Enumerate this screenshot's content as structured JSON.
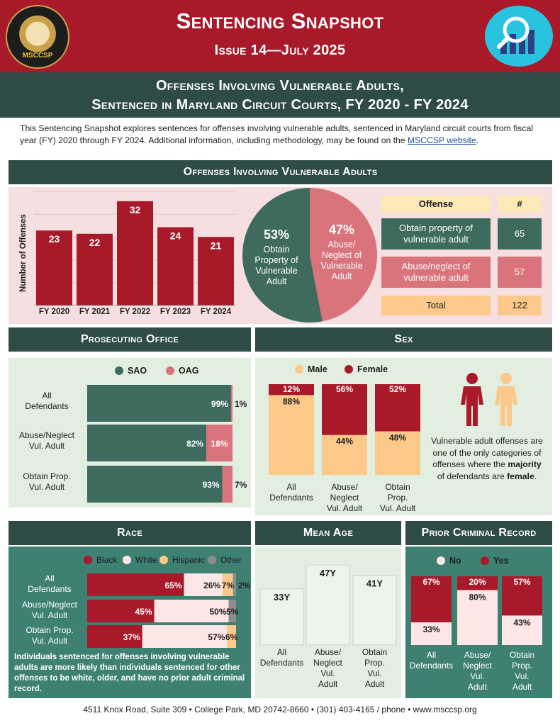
{
  "header": {
    "title": "Sentencing Snapshot",
    "issue": "Issue 14—July 2025",
    "logo_text": "MSCCSP",
    "badge_icon": "magnifier-chart-icon"
  },
  "report_title": {
    "line1": "Offenses Involving Vulnerable Adults,",
    "line2": "Sentenced in Maryland Circuit Courts, FY 2020 - FY 2024"
  },
  "intro": {
    "text": "This Sentencing Snapshot explores sentences for offenses involving vulnerable adults, sentenced in Maryland circuit courts from fiscal year (FY) 2020 through FY 2024. Additional information, including methodology, may be found on the ",
    "link": "MSCCSP website",
    "tail": "."
  },
  "colors": {
    "red": "#a8192a",
    "green": "#3e6b5e",
    "pink": "#d9737c",
    "peach": "#fcc98a",
    "lightpink": "#fde6e6",
    "gray": "#8d8d8d",
    "mint": "#e2efe0"
  },
  "sections": {
    "offenses": "Offenses Involving Vulnerable Adults",
    "prosecuting": "Prosecuting Office",
    "sex": "Sex",
    "race": "Race",
    "age": "Mean Age",
    "prior": "Prior Criminal Record"
  },
  "offense_table": {
    "headers": [
      "Offense",
      "#"
    ],
    "rows": [
      {
        "label": "Obtain property of vulnerable adult",
        "count": "65"
      },
      {
        "label": "Abuse/neglect of vulnerable adult",
        "count": "57"
      },
      {
        "label": "Total",
        "count": "122"
      }
    ]
  },
  "sex_note": {
    "pre": "Vulnerable adult offenses are one of the only categories of offenses where the ",
    "b1": "majority",
    "mid": " of defendants are ",
    "b2": "female",
    "post": "."
  },
  "race_note": "Individuals sentenced for offenses involving vulnerable adults are more likely than individuals sentenced for other offenses to be white, older, and have no prior adult criminal record.",
  "footer": "4511 Knox Road, Suite 309  •  College Park, MD 20742-8660  •  (301) 403-4165 / phone  •  www.msccsp.org",
  "chart_data": [
    {
      "id": "offenses_by_year",
      "type": "bar",
      "categories": [
        "FY 2020",
        "FY 2021",
        "FY 2022",
        "FY 2023",
        "FY 2024"
      ],
      "values": [
        23,
        22,
        32,
        24,
        21
      ],
      "ylabel": "Number of Offenses",
      "ylim": [
        0,
        35
      ],
      "grid": true
    },
    {
      "id": "offense_share",
      "type": "pie",
      "slices": [
        {
          "name": "Obtain Property of Vulnerable Adult",
          "value": 53,
          "label": "53%",
          "color": "#3e6b5e"
        },
        {
          "name": "Abuse/ Neglect of Vulnerable Adult",
          "value": 47,
          "label": "47%",
          "color": "#d9737c"
        }
      ]
    },
    {
      "id": "prosecuting_office",
      "type": "bar",
      "orientation": "horizontal",
      "stacked": true,
      "categories": [
        "All Defendants",
        "Abuse/Neglect Vul. Adult",
        "Obtain Prop. Vul. Adult"
      ],
      "series": [
        {
          "name": "SAO",
          "values": [
            99,
            82,
            93
          ],
          "labels": [
            "99%",
            "82%",
            "93%"
          ],
          "color": "#3e6b5e"
        },
        {
          "name": "OAG",
          "values": [
            1,
            18,
            7
          ],
          "labels": [
            "1%",
            "18%",
            "7%"
          ],
          "color": "#d9737c"
        }
      ]
    },
    {
      "id": "sex",
      "type": "bar",
      "stacked": true,
      "categories": [
        "All Defendants",
        "Abuse/ Neglect Vul. Adult",
        "Obtain Prop. Vul. Adult"
      ],
      "series": [
        {
          "name": "Male",
          "values": [
            88,
            44,
            48
          ],
          "labels": [
            "88%",
            "44%",
            "48%"
          ],
          "color": "#fcc98a"
        },
        {
          "name": "Female",
          "values": [
            12,
            56,
            52
          ],
          "labels": [
            "12%",
            "56%",
            "52%"
          ],
          "color": "#a8192a"
        }
      ]
    },
    {
      "id": "race",
      "type": "bar",
      "orientation": "horizontal",
      "stacked": true,
      "categories": [
        "All Defendants",
        "Abuse/Neglect Vul. Adult",
        "Obtain Prop. Vul. Adult"
      ],
      "series": [
        {
          "name": "Black",
          "values": [
            65,
            45,
            37
          ],
          "labels": [
            "65%",
            "45%",
            "37%"
          ],
          "color": "#a8192a"
        },
        {
          "name": "White",
          "values": [
            26,
            50,
            57
          ],
          "labels": [
            "26%",
            "50%",
            "57%"
          ],
          "color": "#fde6e6"
        },
        {
          "name": "Hispanic",
          "values": [
            7,
            0,
            6
          ],
          "labels": [
            "7%",
            "",
            "6%"
          ],
          "color": "#fcc98a"
        },
        {
          "name": "Other",
          "values": [
            2,
            5,
            0
          ],
          "labels": [
            "2%",
            "5%",
            ""
          ],
          "color": "#8d8d8d"
        }
      ]
    },
    {
      "id": "mean_age",
      "type": "bar",
      "categories": [
        "All Defendants",
        "Abuse/ Neglect Vul. Adult",
        "Obtain Prop. Vul. Adult"
      ],
      "values": [
        33,
        47,
        41
      ],
      "labels": [
        "33Y",
        "47Y",
        "41Y"
      ],
      "ylim": [
        0,
        50
      ]
    },
    {
      "id": "prior_record",
      "type": "bar",
      "stacked": true,
      "categories": [
        "All Defendants",
        "Abuse/ Neglect Vul. Adult",
        "Obtain Prop. Vul. Adult"
      ],
      "series": [
        {
          "name": "No",
          "values": [
            33,
            80,
            43
          ],
          "labels": [
            "33%",
            "80%",
            "43%"
          ],
          "color": "#fde6e6"
        },
        {
          "name": "Yes",
          "values": [
            67,
            20,
            57
          ],
          "labels": [
            "67%",
            "20%",
            "57%"
          ],
          "color": "#a8192a"
        }
      ]
    }
  ]
}
